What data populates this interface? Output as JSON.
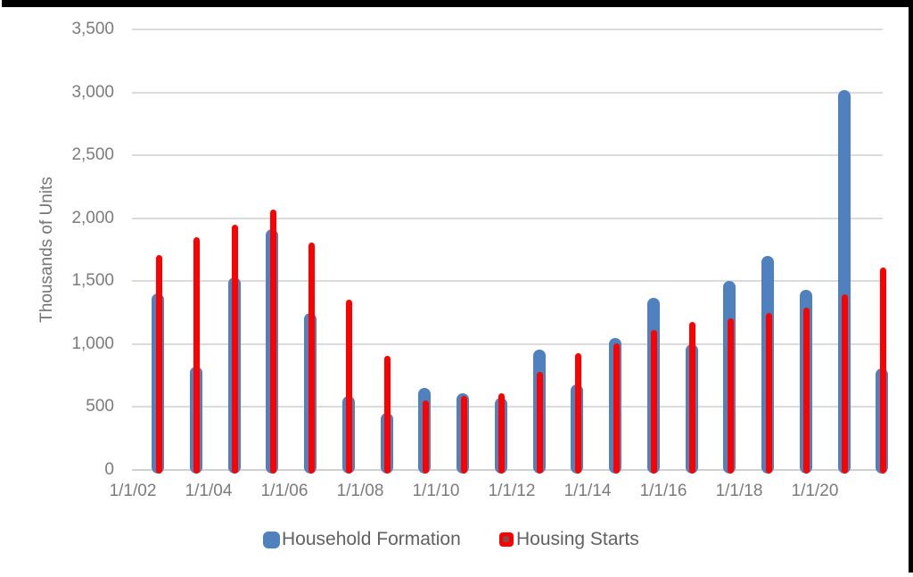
{
  "colors": {
    "frame": "#000000",
    "background": "#FFFFFF",
    "gridline": "#DBDBDB",
    "axis_line": "#D0D0D0",
    "tick_text": "#7B7B7B",
    "axis_title_text": "#757575",
    "legend_text": "#616161",
    "household_formation_blue": "#4E81BD",
    "housing_starts_red": "#FF0000",
    "legend_red_inner": "#8B4A45"
  },
  "chart_data": {
    "type": "bar",
    "title": "",
    "xlabel": "",
    "ylabel": "Thousands of Units",
    "ylim": [
      0,
      3500
    ],
    "ytick_step": 500,
    "grid": "horizontal",
    "legend_position": "bottom",
    "y_tick_labels_top_to_bottom": [
      "3,500",
      "3,000",
      "2,500",
      "2,000",
      "1,500",
      "1,000",
      "500",
      "0"
    ],
    "x_tick_labels": [
      "1/1/02",
      "1/1/04",
      "1/1/06",
      "1/1/08",
      "1/1/10",
      "1/1/12",
      "1/1/14",
      "1/1/16",
      "1/1/18",
      "1/1/20"
    ],
    "categories": [
      "2002",
      "2003",
      "2004",
      "2005",
      "2006",
      "2007",
      "2008",
      "2009",
      "2010",
      "2011",
      "2012",
      "2013",
      "2014",
      "2015",
      "2016",
      "2017",
      "2018",
      "2019",
      "2020",
      "2021"
    ],
    "series": [
      {
        "name": "Household Formation",
        "color": "#4E81BD",
        "values": [
          1400,
          820,
          1530,
          1910,
          1250,
          590,
          450,
          650,
          610,
          575,
          960,
          680,
          1050,
          1370,
          1000,
          1500,
          1700,
          1430,
          3020,
          810
        ]
      },
      {
        "name": "Housing Starts",
        "color": "#FF0000",
        "values": [
          1710,
          1850,
          1950,
          2070,
          1810,
          1355,
          905,
          555,
          590,
          610,
          780,
          925,
          1005,
          1110,
          1175,
          1205,
          1250,
          1290,
          1395,
          1605
        ]
      }
    ]
  },
  "legend": {
    "items": [
      {
        "label": "Household Formation",
        "swatch_color": "#4E81BD"
      },
      {
        "label": "Housing Starts",
        "swatch_color": "#FF0000",
        "swatch_inner_color": "#8B4A45"
      }
    ]
  }
}
